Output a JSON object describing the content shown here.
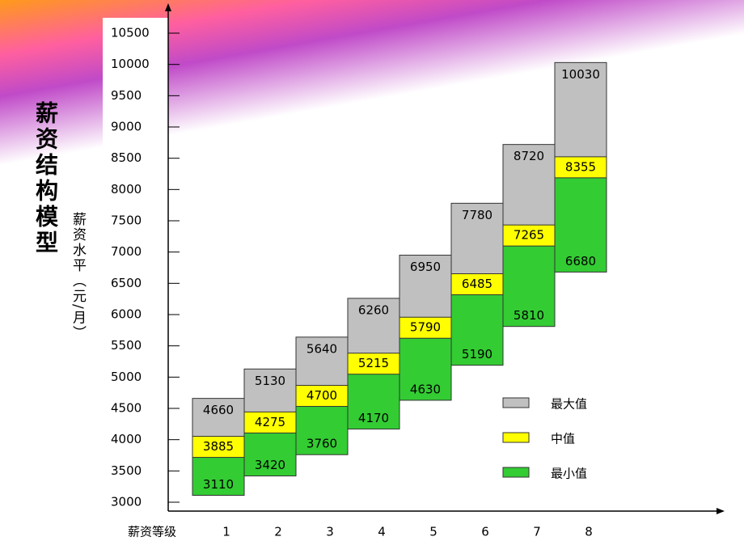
{
  "chart_data": {
    "type": "range-bar",
    "title": "薪资结构模型",
    "y_label": "薪资水平（元/月）",
    "x_label": "薪资等级",
    "categories": [
      "1",
      "2",
      "3",
      "4",
      "5",
      "6",
      "7",
      "8"
    ],
    "series": [
      {
        "name": "最大值",
        "color": "#c0c0c0",
        "values": [
          4660,
          5130,
          5640,
          6260,
          6950,
          7780,
          8720,
          10030
        ]
      },
      {
        "name": "中值",
        "color": "#ffff00",
        "values": [
          3885,
          4275,
          4700,
          5215,
          5790,
          6485,
          7265,
          8355
        ]
      },
      {
        "name": "最小值",
        "color": "#33cc33",
        "values": [
          3110,
          3420,
          3760,
          4170,
          4630,
          5190,
          5810,
          6680
        ]
      }
    ],
    "ylim": [
      3000,
      10500
    ],
    "yticks": [
      3000,
      3500,
      4000,
      4500,
      5000,
      5500,
      6000,
      6500,
      7000,
      7500,
      8000,
      8500,
      9000,
      9500,
      10000,
      10500
    ]
  }
}
